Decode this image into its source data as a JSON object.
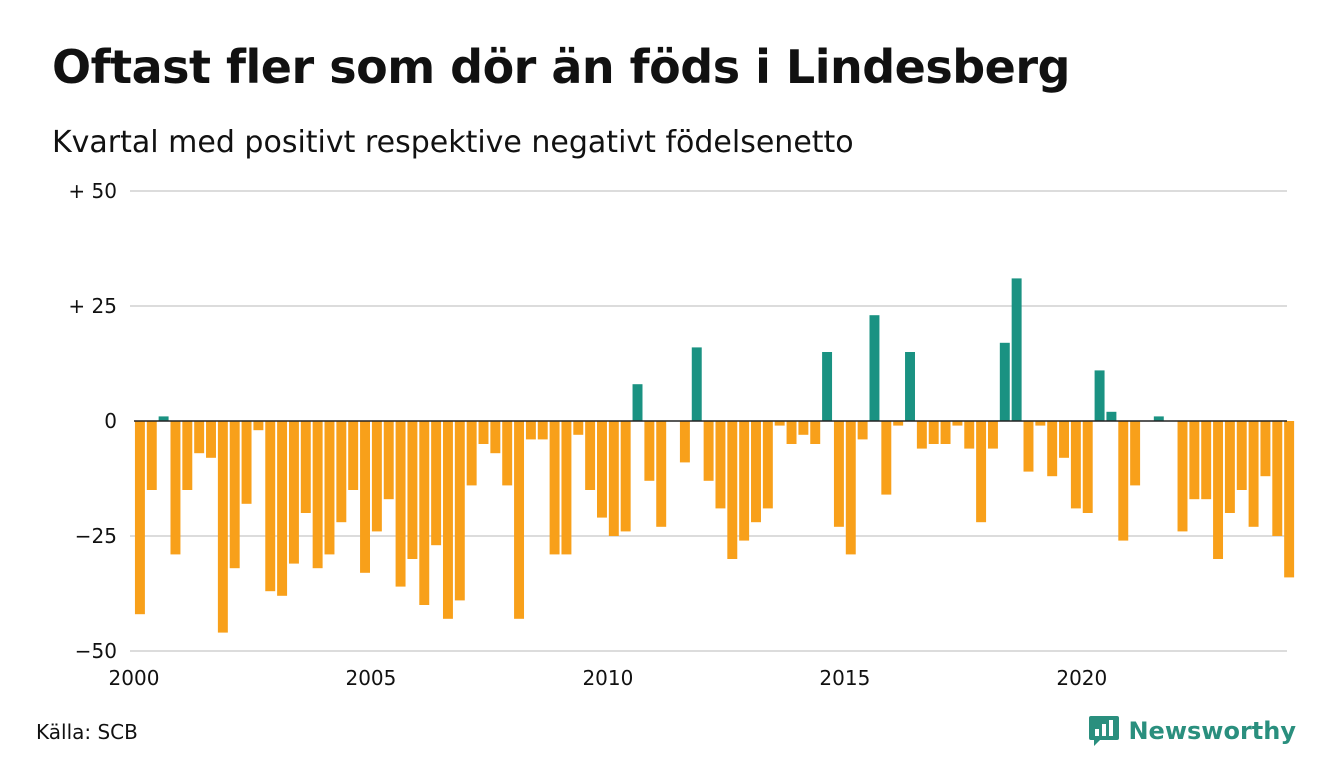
{
  "title": "Oftast fler som dör än föds i Lindesberg",
  "subtitle": "Kvartal med positivt respektive negativt födelsenetto",
  "source": "Källa: SCB",
  "brand": "Newsworthy",
  "brand_icon": "chart-speech-bubble-icon",
  "colors": {
    "positive": "#1a9282",
    "negative": "#f8a01a",
    "grid": "#dcdcdc",
    "baseline": "#222222",
    "brand": "#2a8f7e"
  },
  "chart_data": {
    "type": "bar",
    "title": "Oftast fler som dör än föds i Lindesberg",
    "subtitle": "Kvartal med positivt respektive negativt födelsenetto",
    "x_start": 2000,
    "periods_per_year": 4,
    "xlim": [
      2000,
      2024.33
    ],
    "ylim": [
      -50,
      50
    ],
    "yticks": [
      50,
      25,
      0,
      -25,
      -50
    ],
    "ytick_labels": [
      "+ 50",
      "+ 25",
      "0",
      "−25",
      "−50"
    ],
    "xticks": [
      2000,
      2005,
      2010,
      2015,
      2020
    ],
    "xtick_labels": [
      "2000",
      "2005",
      "2010",
      "2015",
      "2020"
    ],
    "grid": true,
    "values": [
      -42,
      -15,
      1,
      -29,
      -15,
      -7,
      -8,
      -46,
      -32,
      -18,
      -2,
      -37,
      -38,
      -31,
      -20,
      -32,
      -29,
      -22,
      -15,
      -33,
      -24,
      -17,
      -36,
      -30,
      -40,
      -27,
      -43,
      -39,
      -14,
      -5,
      -7,
      -14,
      -43,
      -4,
      -4,
      -29,
      -29,
      -3,
      -15,
      -21,
      -25,
      -24,
      8,
      -13,
      -23,
      0,
      -9,
      16,
      -13,
      -19,
      -30,
      -26,
      -22,
      -19,
      -1,
      -5,
      -3,
      -5,
      15,
      -23,
      -29,
      -4,
      23,
      -16,
      -1,
      15,
      -6,
      -5,
      -5,
      -1,
      -6,
      -22,
      -6,
      17,
      31,
      -11,
      -1,
      -12,
      -8,
      -19,
      -20,
      11,
      2,
      -26,
      -14,
      0,
      1,
      0,
      -24,
      -17,
      -17,
      -30,
      -20,
      -15,
      -23,
      -12,
      -25,
      -34
    ]
  }
}
